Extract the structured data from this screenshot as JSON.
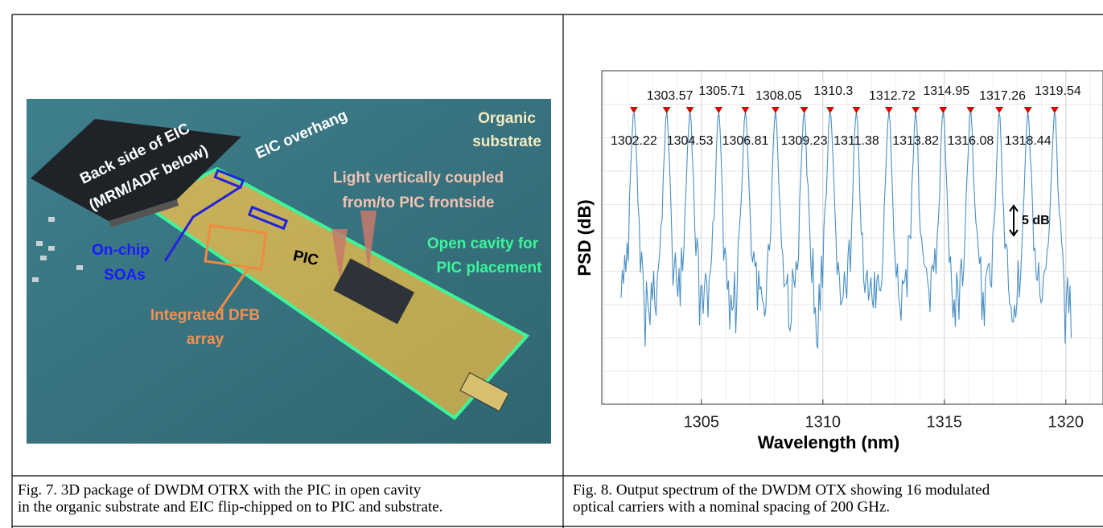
{
  "figure7": {
    "labels": {
      "eic_back": [
        "Back side of EIC",
        "(MRM/ADF below)"
      ],
      "eic_overhang": "EIC overhang",
      "organic": [
        "Organic",
        "substrate"
      ],
      "light": [
        "Light vertically coupled",
        "from/to PIC frontside"
      ],
      "soa": [
        "On-chip",
        "SOAs"
      ],
      "pic": "PIC",
      "cavity": [
        "Open cavity for",
        "PIC placement"
      ],
      "dfb": [
        "Integrated DFB",
        "array"
      ]
    },
    "caption": [
      "Fig. 7.    3D package of DWDM OTRX with the PIC in open cavity",
      "in the organic substrate and EIC flip-chipped on to PIC and substrate."
    ]
  },
  "figure8": {
    "chart_data": {
      "type": "line",
      "xlabel": "Wavelength (nm)",
      "ylabel": "PSD (dB)",
      "xlim": [
        1300.9,
        1321.53
      ],
      "xticks": [
        1305,
        1310,
        1315,
        1320
      ],
      "grid": true,
      "color": "#4a8fc4",
      "marker_color": "#e00000",
      "peaks": [
        1302.22,
        1303.57,
        1304.53,
        1305.71,
        1306.81,
        1308.05,
        1309.23,
        1310.3,
        1311.38,
        1312.72,
        1313.82,
        1314.95,
        1316.08,
        1317.26,
        1318.44,
        1319.54
      ],
      "annotation": "5 dB"
    },
    "caption": [
      "Fig. 8. Output spectrum of the DWDM OTX showing 16 modulated",
      "optical carriers with a nominal spacing of 200 GHz."
    ]
  }
}
